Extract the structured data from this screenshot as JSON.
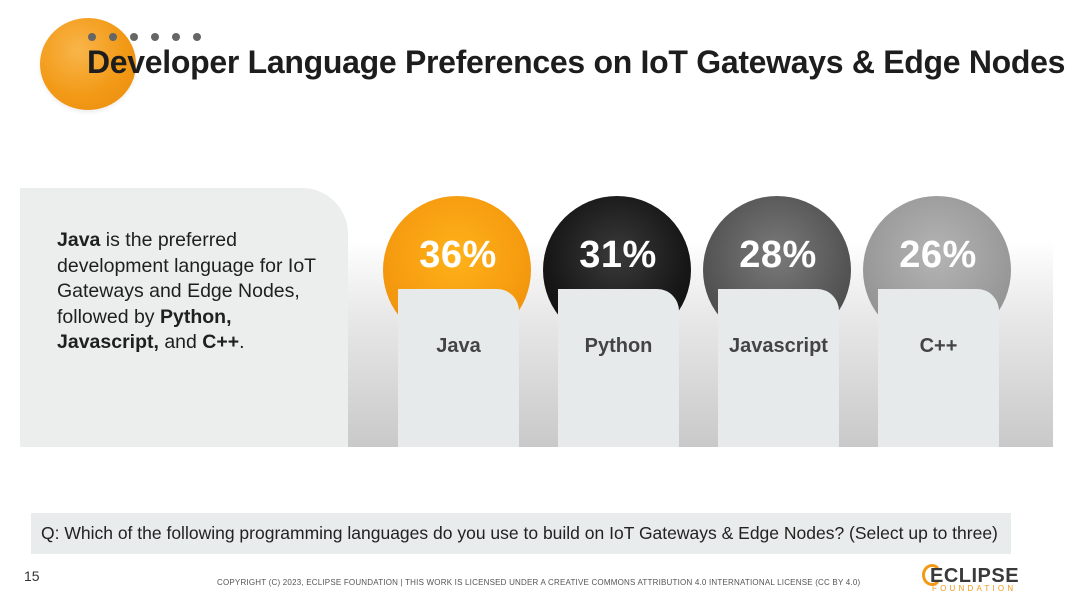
{
  "title": "Developer Language Preferences on IoT Gateways & Edge Nodes",
  "summary": {
    "lead_bold": "Java",
    "text1": " is the preferred development language for IoT Gateways and Edge Nodes, followed by ",
    "bold2": "Python,",
    "bold3": "Javascript,",
    "text2": " and ",
    "bold4": "C++",
    "text3": "."
  },
  "chart_data": {
    "type": "bar",
    "title": "Developer Language Preferences on IoT Gateways & Edge Nodes",
    "categories": [
      "Java",
      "Python",
      "Javascript",
      "C++"
    ],
    "values": [
      36,
      31,
      28,
      26
    ],
    "value_labels": [
      "36%",
      "31%",
      "28%",
      "26%"
    ],
    "unit": "%",
    "colors": [
      "#f59a0f",
      "#171717",
      "#555555",
      "#9a9a9a"
    ]
  },
  "question": "Q: Which of the following programming languages do you use to build on IoT Gateways & Edge Nodes? (Select up to three)",
  "footer": {
    "page_number": "15",
    "copyright": "COPYRIGHT (C) 2023, ECLIPSE FOUNDATION | THIS WORK IS LICENSED UNDER A CREATIVE COMMONS ATTRIBUTION 4.0 INTERNATIONAL LICENSE (CC BY 4.0)",
    "logo_word": "ECLIPSE",
    "logo_sub": "FOUNDATION"
  }
}
